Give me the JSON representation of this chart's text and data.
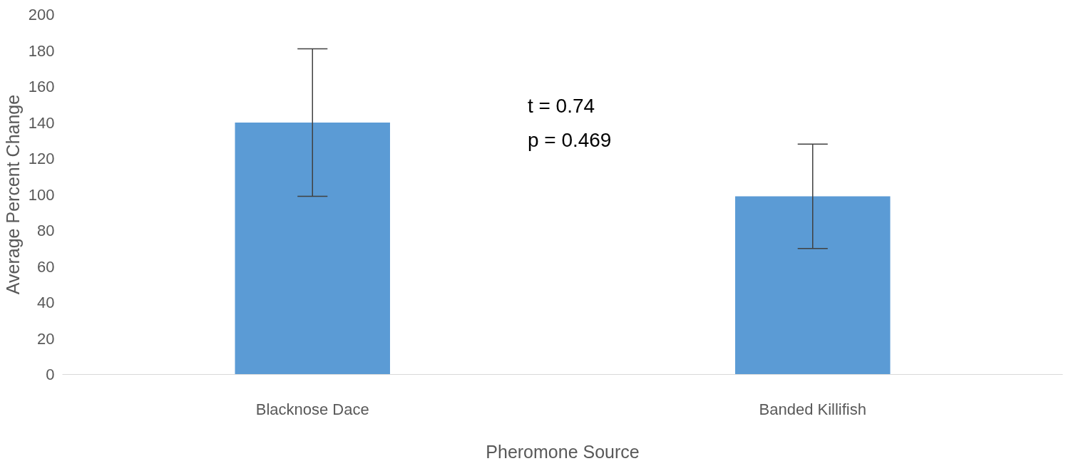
{
  "chart_data": {
    "type": "bar",
    "xlabel": "Pheromone Source",
    "ylabel": "Average Percent Change",
    "categories": [
      "Blacknose Dace",
      "Banded Killifish"
    ],
    "color": "#5b9bd5",
    "values": [
      140,
      99
    ],
    "errors": [
      41,
      29
    ],
    "ylim": [
      0,
      200
    ],
    "yticks": [
      0,
      20,
      40,
      60,
      80,
      100,
      120,
      140,
      160,
      180,
      200
    ],
    "grid": false,
    "annotations": [
      "t = 0.74",
      "p = 0.469"
    ]
  }
}
